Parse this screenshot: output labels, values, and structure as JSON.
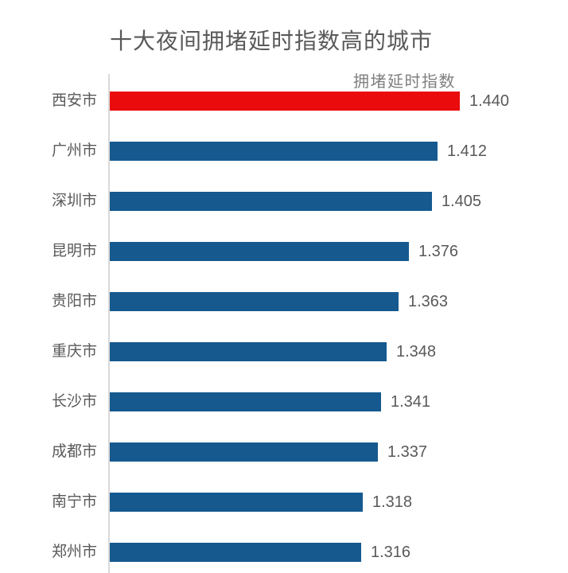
{
  "chart_data": {
    "type": "bar",
    "orientation": "horizontal",
    "title": "十大夜间拥堵延时指数高的城市",
    "series_label": "拥堵延时指数",
    "categories": [
      "西安市",
      "广州市",
      "深圳市",
      "昆明市",
      "贵阳市",
      "重庆市",
      "长沙市",
      "成都市",
      "南宁市",
      "郑州市"
    ],
    "values": [
      1.44,
      1.412,
      1.405,
      1.376,
      1.363,
      1.348,
      1.341,
      1.337,
      1.318,
      1.316
    ],
    "value_labels": [
      "1.440",
      "1.412",
      "1.405",
      "1.376",
      "1.363",
      "1.348",
      "1.341",
      "1.337",
      "1.318",
      "1.316"
    ],
    "highlight_index": 0,
    "axis_min": 1.0,
    "grid": false,
    "legend_position": "above-first-bar-right",
    "colors": {
      "bar": "#15598F",
      "highlight": "#EA0C0C",
      "axis_line": "#D9D9D9",
      "title_text": "#595959",
      "series_label_text": "#7F7F7F",
      "label_text": "#595959",
      "background": "#FFFFFF"
    }
  }
}
